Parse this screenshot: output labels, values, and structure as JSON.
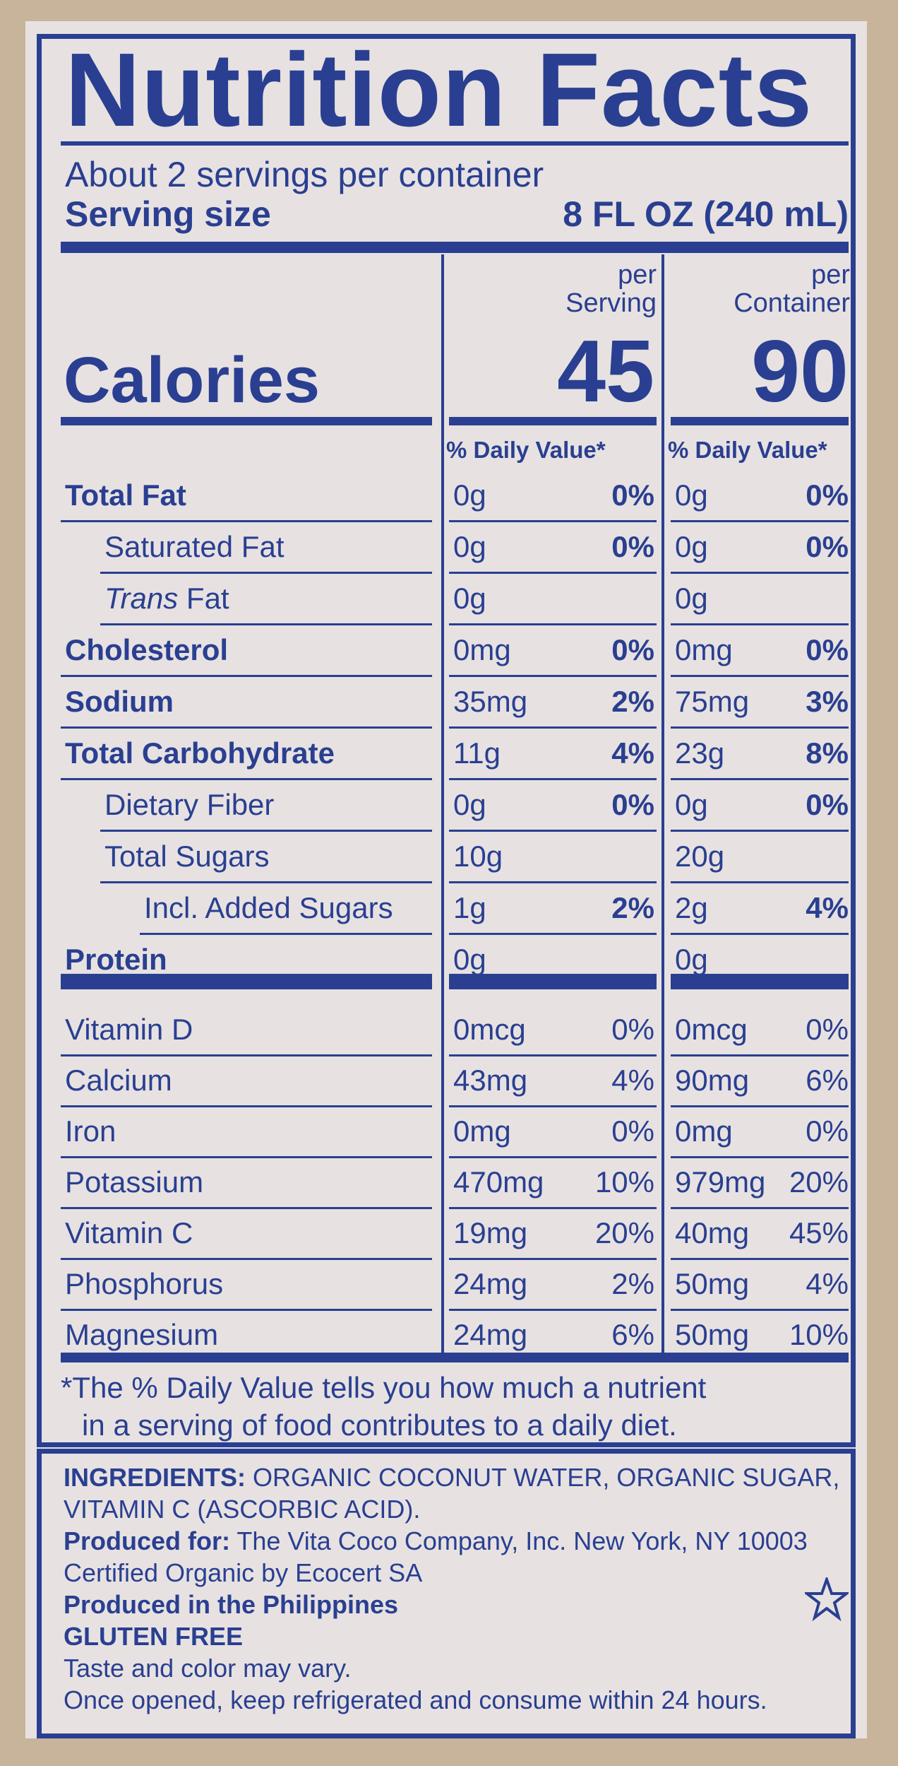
{
  "title": "Nutrition Facts",
  "servings_per_container": "About 2 servings per container",
  "serving_size_label": "Serving size",
  "serving_size_value": "8 FL OZ (240 mL)",
  "per_serving_label": [
    "per",
    "Serving"
  ],
  "per_container_label": [
    "per",
    "Container"
  ],
  "calories_label": "Calories",
  "calories_serving": "45",
  "calories_container": "90",
  "dv_header": "% Daily Value*",
  "nutrients": [
    {
      "label": "Total Fat",
      "bold": true,
      "indent": 0,
      "s_amt": "0g",
      "s_dv": "0%",
      "c_amt": "0g",
      "c_dv": "0%"
    },
    {
      "label": "Saturated Fat",
      "bold": false,
      "indent": 1,
      "s_amt": "0g",
      "s_dv": "0%",
      "c_amt": "0g",
      "c_dv": "0%"
    },
    {
      "label": "Trans Fat",
      "bold": false,
      "indent": 1,
      "italic_prefix": "Trans",
      "s_amt": "0g",
      "s_dv": "",
      "c_amt": "0g",
      "c_dv": ""
    },
    {
      "label": "Cholesterol",
      "bold": true,
      "indent": 0,
      "s_amt": "0mg",
      "s_dv": "0%",
      "c_amt": "0mg",
      "c_dv": "0%"
    },
    {
      "label": "Sodium",
      "bold": true,
      "indent": 0,
      "s_amt": "35mg",
      "s_dv": "2%",
      "c_amt": "75mg",
      "c_dv": "3%"
    },
    {
      "label": "Total Carbohydrate",
      "bold": true,
      "indent": 0,
      "s_amt": "11g",
      "s_dv": "4%",
      "c_amt": "23g",
      "c_dv": "8%"
    },
    {
      "label": "Dietary Fiber",
      "bold": false,
      "indent": 1,
      "s_amt": "0g",
      "s_dv": "0%",
      "c_amt": "0g",
      "c_dv": "0%"
    },
    {
      "label": "Total Sugars",
      "bold": false,
      "indent": 1,
      "s_amt": "10g",
      "s_dv": "",
      "c_amt": "20g",
      "c_dv": ""
    },
    {
      "label": "Incl. Added Sugars",
      "bold": false,
      "indent": 2,
      "s_amt": "1g",
      "s_dv": "2%",
      "c_amt": "2g",
      "c_dv": "4%"
    },
    {
      "label": "Protein",
      "bold": true,
      "indent": 0,
      "s_amt": "0g",
      "s_dv": "",
      "c_amt": "0g",
      "c_dv": ""
    }
  ],
  "vitamins": [
    {
      "label": "Vitamin D",
      "s_amt": "0mcg",
      "s_dv": "0%",
      "c_amt": "0mcg",
      "c_dv": "0%"
    },
    {
      "label": "Calcium",
      "s_amt": "43mg",
      "s_dv": "4%",
      "c_amt": "90mg",
      "c_dv": "6%"
    },
    {
      "label": "Iron",
      "s_amt": "0mg",
      "s_dv": "0%",
      "c_amt": "0mg",
      "c_dv": "0%"
    },
    {
      "label": "Potassium",
      "s_amt": "470mg",
      "s_dv": "10%",
      "c_amt": "979mg",
      "c_dv": "20%"
    },
    {
      "label": "Vitamin C",
      "s_amt": "19mg",
      "s_dv": "20%",
      "c_amt": "40mg",
      "c_dv": "45%"
    },
    {
      "label": "Phosphorus",
      "s_amt": "24mg",
      "s_dv": "2%",
      "c_amt": "50mg",
      "c_dv": "4%"
    },
    {
      "label": "Magnesium",
      "s_amt": "24mg",
      "s_dv": "6%",
      "c_amt": "50mg",
      "c_dv": "10%"
    }
  ],
  "footnote": [
    "*The % Daily Value tells you how much a nutrient",
    "in a serving of food contributes to a daily diet."
  ],
  "ingredients_label": "INGREDIENTS:",
  "ingredients_text": "ORGANIC COCONUT WATER, ORGANIC SUGAR,",
  "ingredients_text2": "VITAMIN C (ASCORBIC ACID).",
  "produced_for_label": "Produced for:",
  "produced_for_text": "The Vita Coco Company, Inc. New York, NY 10003",
  "certified": "Certified Organic by Ecocert SA",
  "produced_in": "Produced in the Philippines",
  "gluten_free": "GLUTEN FREE",
  "taste_note": "Taste and color may vary.",
  "storage_note": "Once opened, keep refrigerated and consume within 24 hours.",
  "colors": {
    "ink": "#2a3f91",
    "paper": "#e7e2e1"
  }
}
